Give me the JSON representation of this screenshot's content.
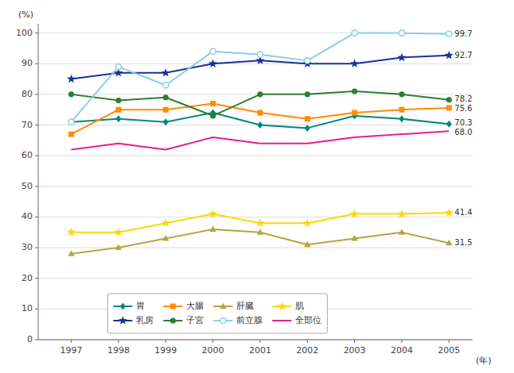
{
  "chart_data": {
    "type": "line",
    "xlabel": "(年)",
    "ylabel": "(%)",
    "x": [
      1997,
      1998,
      1999,
      2000,
      2001,
      2002,
      2003,
      2004,
      2005
    ],
    "xlim": [
      1996.3,
      2005.5
    ],
    "xticks": [
      1997,
      1998,
      1999,
      2000,
      2001,
      2002,
      2003,
      2004,
      2005
    ],
    "ylim": [
      0,
      103
    ],
    "yticks": [
      0,
      10,
      20,
      30,
      40,
      50,
      60,
      70,
      80,
      90,
      100
    ],
    "grid": true,
    "legend": "lower left",
    "series": [
      {
        "name": "胃",
        "color": "#00897b",
        "marker": "diamond",
        "values": [
          71,
          72,
          71,
          74,
          70,
          69,
          73,
          72,
          70.3
        ]
      },
      {
        "name": "大腸",
        "color": "#ff8c00",
        "marker": "square",
        "values": [
          67,
          75,
          75,
          77,
          74,
          72,
          74,
          75,
          75.6
        ]
      },
      {
        "name": "肝臓",
        "color": "#b5a642",
        "marker": "triangle",
        "values": [
          28,
          30,
          33,
          36,
          35,
          31,
          33,
          35,
          31.5
        ]
      },
      {
        "name": "肌",
        "color": "#ffd700",
        "marker": "star",
        "values": [
          35,
          35,
          38,
          41,
          38,
          38,
          41,
          41,
          41.4
        ]
      },
      {
        "name": "乳房",
        "color": "#1a3399",
        "marker": "star",
        "values": [
          85,
          87,
          87,
          90,
          91,
          90,
          90,
          92,
          92.7
        ]
      },
      {
        "name": "子宮",
        "color": "#2e7d32",
        "marker": "circle",
        "values": [
          80,
          78,
          79,
          73,
          80,
          80,
          81,
          80,
          78.2
        ]
      },
      {
        "name": "前立腺",
        "color": "#87ceeb",
        "marker": "circle-open",
        "values": [
          71,
          89,
          83,
          94,
          93,
          91,
          100,
          100,
          99.7
        ]
      },
      {
        "name": "全部位",
        "color": "#e91e8c",
        "marker": "none",
        "values": [
          62,
          64,
          62,
          66,
          64,
          64,
          66,
          67,
          68.0
        ]
      }
    ],
    "annotations": [
      {
        "text": "70.3",
        "x": 2005,
        "y": 70.3
      },
      {
        "text": "75.6",
        "x": 2005,
        "y": 75.6
      },
      {
        "text": "31.5",
        "x": 2005,
        "y": 31.5
      },
      {
        "text": "41.4",
        "x": 2005,
        "y": 41.4
      },
      {
        "text": "92.7",
        "x": 2005,
        "y": 92.7
      },
      {
        "text": "78.2",
        "x": 2005,
        "y": 78.2
      },
      {
        "text": "99.7",
        "x": 2005,
        "y": 99.7
      },
      {
        "text": "68.0",
        "x": 2005,
        "y": 68.0
      }
    ]
  }
}
